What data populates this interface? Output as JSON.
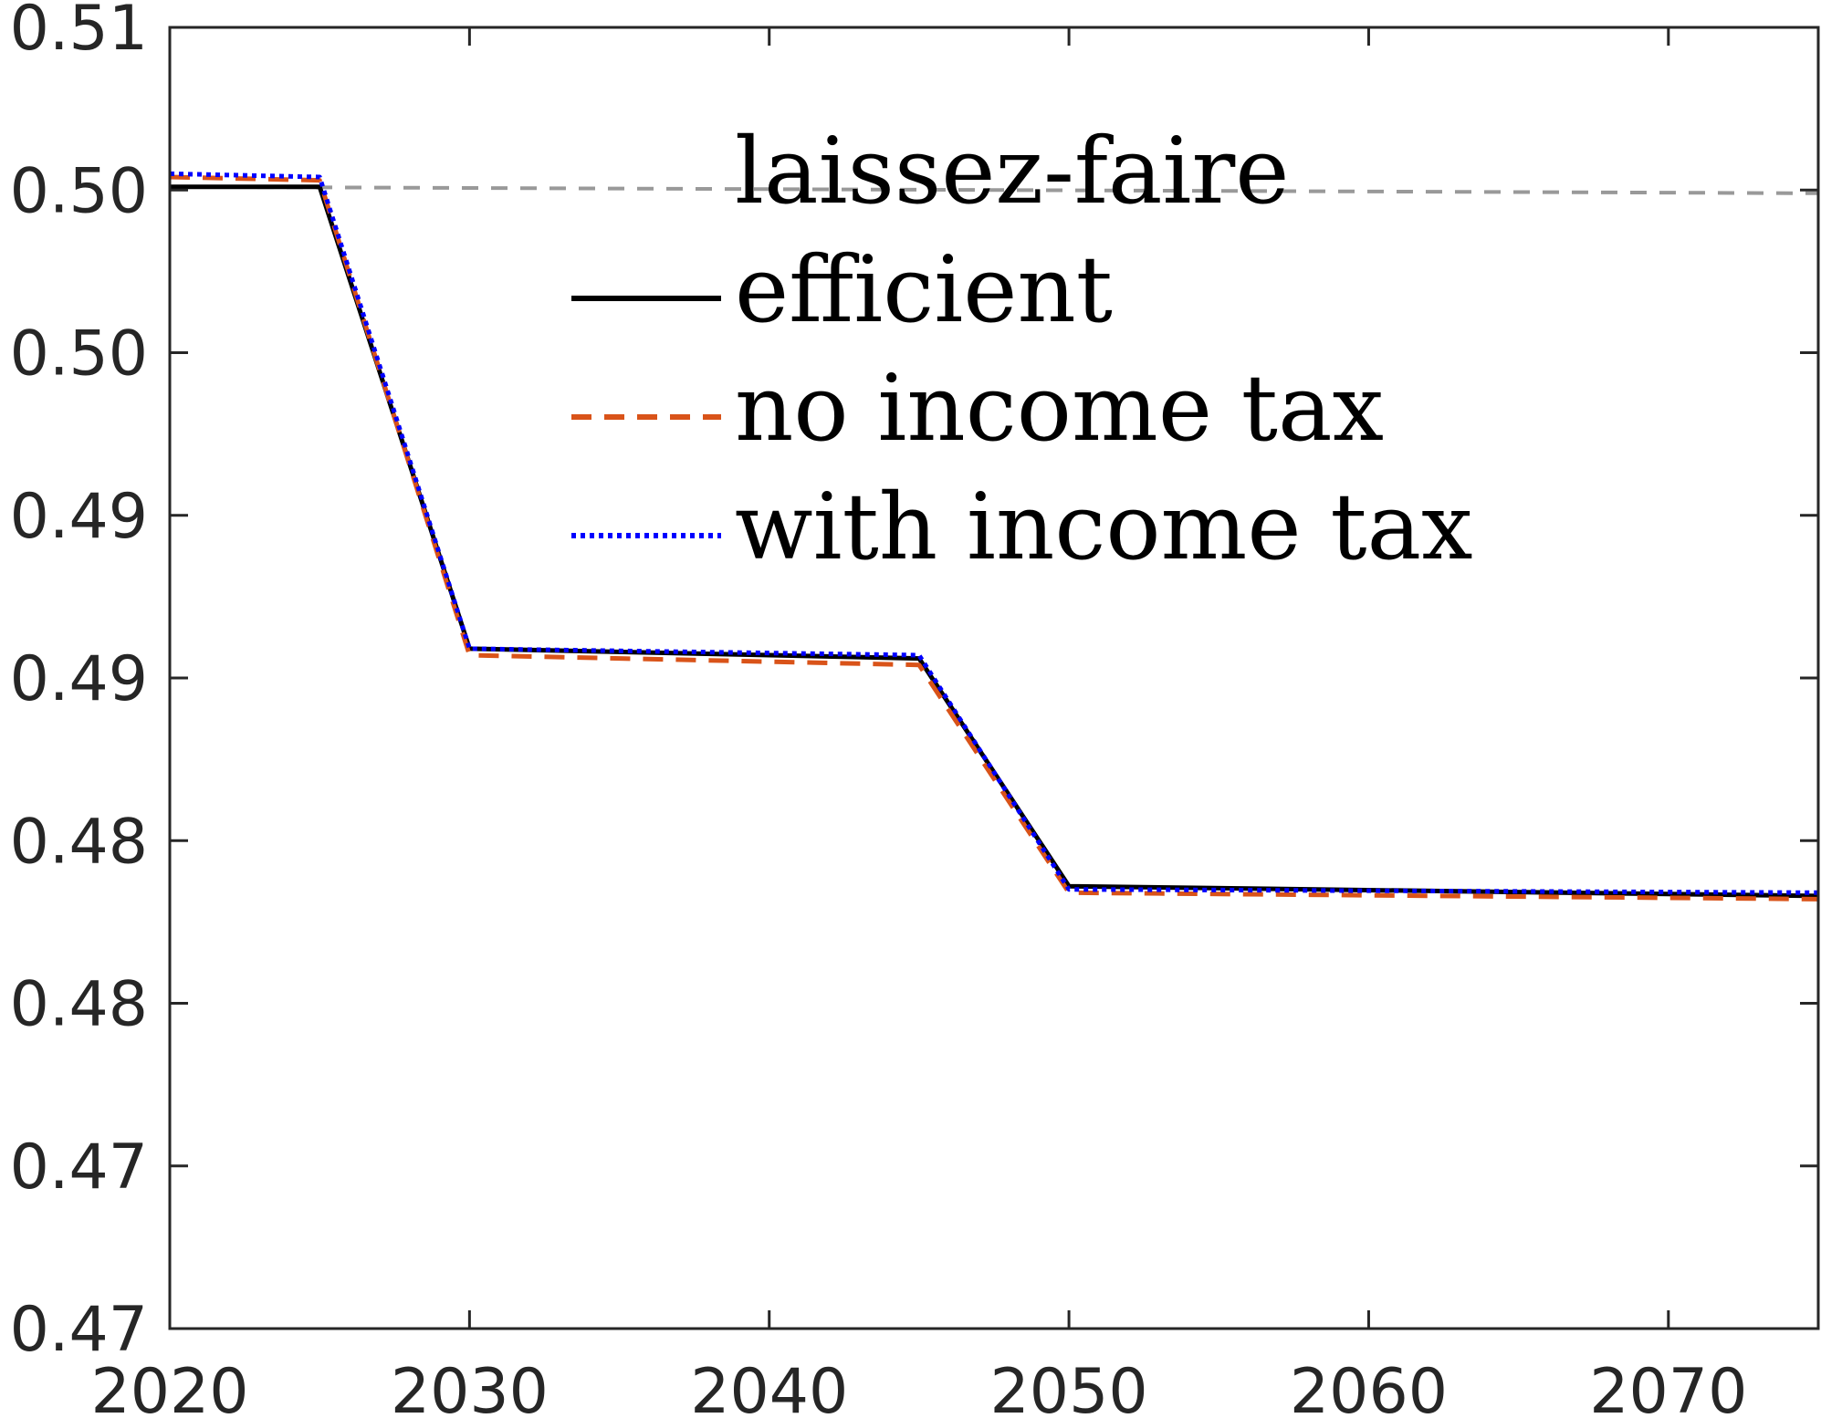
{
  "chart_data": {
    "type": "line",
    "title": "",
    "xlabel": "",
    "ylabel": "",
    "xlim": [
      2020,
      2075
    ],
    "ylim": [
      0.465,
      0.505
    ],
    "x_ticks": [
      2020,
      2030,
      2040,
      2050,
      2060,
      2070
    ],
    "x_tick_labels": [
      "2020",
      "2030",
      "2040",
      "2050",
      "2060",
      "2070"
    ],
    "y_ticks": [
      0.465,
      0.47,
      0.475,
      0.48,
      0.485,
      0.49,
      0.495,
      0.5,
      0.505
    ],
    "y_tick_labels": [
      "0.47",
      "0.47",
      "0.48",
      "0.48",
      "0.49",
      "0.49",
      "0.50",
      "0.50",
      "0.51"
    ],
    "grid": false,
    "legend_position": "top-center",
    "series": [
      {
        "name": "laissez-faire",
        "color": "#999999",
        "style": "dashed-gray",
        "x": [
          2020,
          2075
        ],
        "y": [
          0.5001,
          0.4999
        ]
      },
      {
        "name": "efficient",
        "color": "#000000",
        "style": "solid",
        "x": [
          2020,
          2025,
          2030,
          2045,
          2050,
          2075
        ],
        "y": [
          0.5001,
          0.5001,
          0.4859,
          0.4856,
          0.4786,
          0.4783
        ]
      },
      {
        "name": "no income tax",
        "color": "#D95319",
        "style": "dashed",
        "x": [
          2020,
          2025,
          2030,
          2045,
          2050,
          2075
        ],
        "y": [
          0.5004,
          0.5003,
          0.4857,
          0.4854,
          0.4784,
          0.4782
        ]
      },
      {
        "name": "with income tax",
        "color": "#0000FF",
        "style": "dotted",
        "x": [
          2020,
          2025,
          2030,
          2045,
          2050,
          2075
        ],
        "y": [
          0.5005,
          0.5004,
          0.4859,
          0.4857,
          0.4785,
          0.4784
        ]
      }
    ]
  }
}
